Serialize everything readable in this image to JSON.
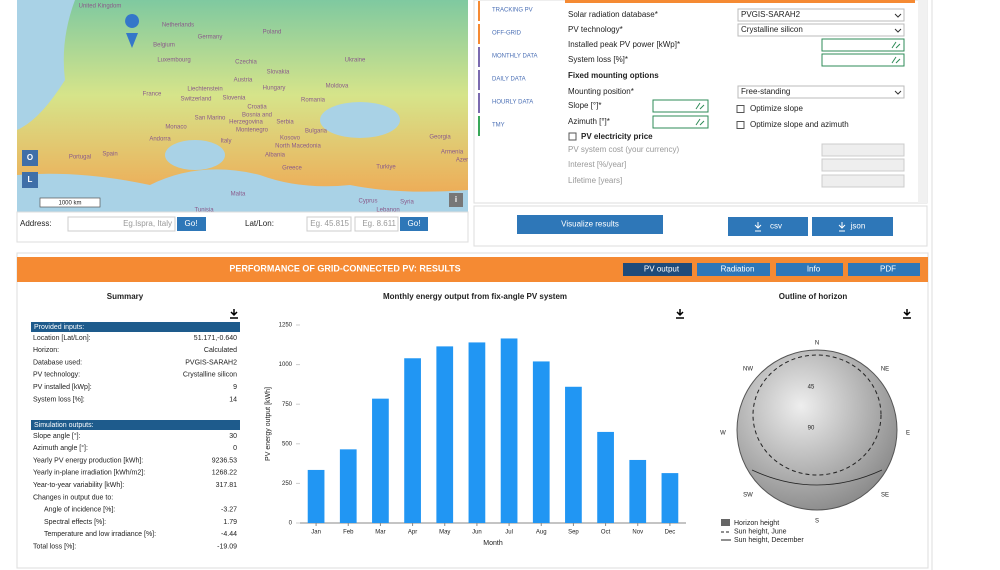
{
  "map": {
    "labels": [
      "United Kingdom",
      "Netherlands",
      "Belgium",
      "Germany",
      "Poland",
      "Luxembourg",
      "Czechia",
      "Ukraine",
      "Slovakia",
      "Austria",
      "France",
      "Liechtenstein",
      "Hungary",
      "Moldova",
      "Switzerland",
      "Slovenia",
      "Croatia",
      "Romania",
      "San Marino",
      "Bosnia and",
      "Herzegovina",
      "Serbia",
      "Monaco",
      "Montenegro",
      "Bulgaria",
      "Andorra",
      "Italy",
      "Kosovo",
      "North Macedonia",
      "Georgia",
      "Portugal",
      "Spain",
      "Albania",
      "Armenia",
      "Azer",
      "Greece",
      "Turkiye",
      "Malta",
      "Tunisia",
      "Cyprus",
      "Syria",
      "Lebanon"
    ],
    "scale": "1000 km",
    "btn_o": "O",
    "btn_l": "L",
    "info": "i"
  },
  "address": {
    "label": "Address:",
    "placeholder": "Eg.Ispra, Italy",
    "go": "Go!",
    "latlon": "Lat/Lon:",
    "lat": "Eg. 45.815",
    "lon": "Eg. 8.611",
    "go2": "Go!"
  },
  "tabs": [
    "TRACKING PV",
    "OFF-GRID",
    "MONTHLY DATA",
    "DAILY DATA",
    "HOURLY DATA",
    "TMY"
  ],
  "form": {
    "labels": [
      "Solar radiation database*",
      "PV technology*",
      "Installed peak PV power [kWp]*",
      "System loss [%]*",
      "Fixed mounting options",
      "Mounting position*",
      "Slope [°]*",
      "Azimuth [°]*",
      "PV electricity price",
      "PV system cost (your currency)",
      "Interest [%/year]",
      "Lifetime [years]"
    ],
    "database": "PVGIS-SARAH2",
    "technology": "Crystalline silicon",
    "mounting": "Free-standing",
    "opt_slope": "Optimize slope",
    "opt_both": "Optimize slope and azimuth"
  },
  "buttons": {
    "visualize": "Visualize results",
    "csv": "csv",
    "json": "json"
  },
  "results": {
    "title": "PERFORMANCE OF GRID-CONNECTED PV: RESULTS",
    "tabs": [
      "PV output",
      "Radiation",
      "Info",
      "PDF"
    ]
  },
  "summary": {
    "title": "Summary",
    "provided": {
      "header": "Provided inputs:",
      "rows": [
        [
          "Location [Lat/Lon]:",
          "51.171,-0.640"
        ],
        [
          "Horizon:",
          "Calculated"
        ],
        [
          "Database used:",
          "PVGIS-SARAH2"
        ],
        [
          "PV technology:",
          "Crystalline silicon"
        ],
        [
          "PV installed [kWp]:",
          "9"
        ],
        [
          "System loss [%]:",
          "14"
        ]
      ]
    },
    "outputs": {
      "header": "Simulation outputs:",
      "rows": [
        [
          "Slope angle [°]:",
          "30"
        ],
        [
          "Azimuth angle [°]:",
          "0"
        ],
        [
          "Yearly PV energy production [kWh]:",
          "9236.53"
        ],
        [
          "Yearly in-plane irradiation [kWh/m2]:",
          "1268.22"
        ],
        [
          "Year-to-year variability [kWh]:",
          "317.81"
        ],
        [
          "Changes in output due to:",
          ""
        ],
        [
          "Angle of incidence [%]:",
          "-3.27"
        ],
        [
          "Spectral effects [%]:",
          "1.79"
        ],
        [
          "Temperature and low irradiance [%]:",
          "-4.44"
        ],
        [
          "Total loss [%]:",
          "-19.09"
        ]
      ]
    }
  },
  "chart_data": {
    "type": "bar",
    "title": "Monthly energy output from fix-angle PV system",
    "x_label": "Month",
    "y_label": "PV energy output [kWh]",
    "categories": [
      "Jan",
      "Feb",
      "Mar",
      "Apr",
      "May",
      "Jun",
      "Jul",
      "Aug",
      "Sep",
      "Oct",
      "Nov",
      "Dec"
    ],
    "values": [
      335,
      465,
      785,
      1040,
      1115,
      1140,
      1165,
      1020,
      860,
      575,
      398,
      315
    ],
    "color": "#2196f3",
    "ylim": [
      0,
      1250
    ],
    "yticks": [
      0,
      250,
      500,
      750,
      1000,
      1250
    ],
    "grid": false
  },
  "horizon": {
    "title": "Outline of horizon",
    "compass": [
      "N",
      "NE",
      "E",
      "SE",
      "S",
      "SW",
      "W",
      "NW"
    ],
    "rings": [
      "45",
      "90"
    ],
    "legend": [
      "Horizon height",
      "Sun height, June",
      "Sun height, December"
    ]
  }
}
